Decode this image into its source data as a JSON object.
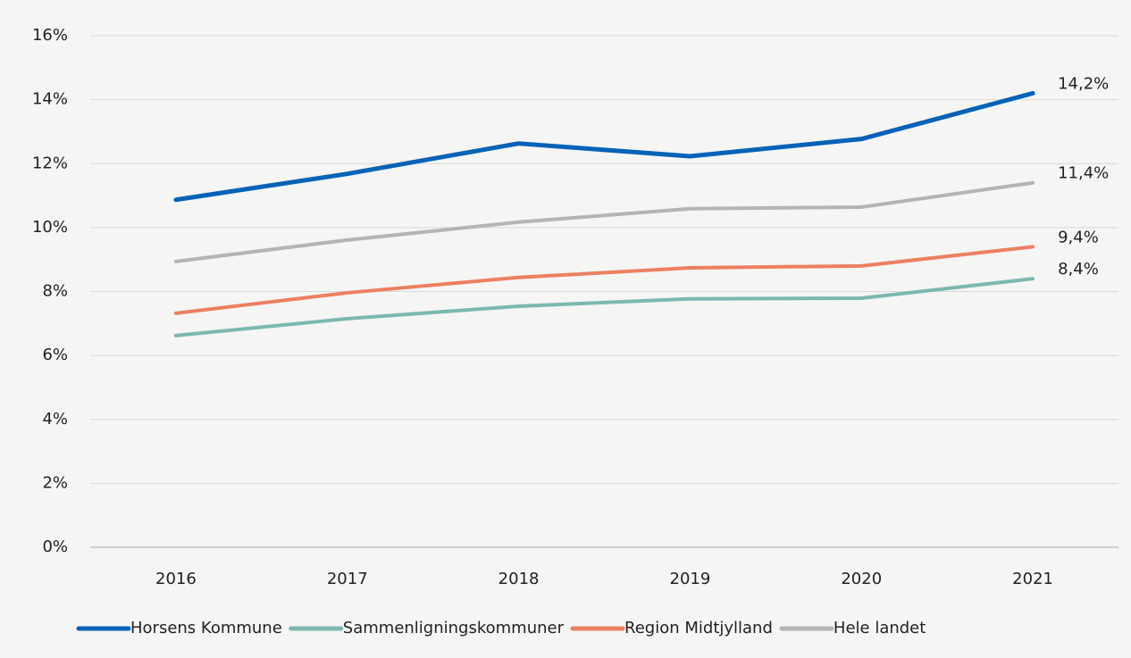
{
  "chart_data": {
    "type": "line",
    "categories": [
      "2016",
      "2017",
      "2018",
      "2019",
      "2020",
      "2021"
    ],
    "series": [
      {
        "name": "Horsens Kommune",
        "color": "#0563b7",
        "values": [
          10.87,
          11.68,
          12.63,
          12.23,
          12.77,
          14.2
        ],
        "value_labels": [
          null,
          null,
          null,
          null,
          null,
          "14,2%"
        ]
      },
      {
        "name": "Sammenligningskommuner",
        "color": "#7bb8b1",
        "values": [
          6.62,
          7.15,
          7.54,
          7.77,
          7.79,
          8.4
        ],
        "value_labels": [
          null,
          null,
          null,
          null,
          null,
          "8,4%"
        ]
      },
      {
        "name": "Region Midtjylland",
        "color": "#ec8061",
        "values": [
          7.32,
          7.96,
          8.44,
          8.74,
          8.8,
          9.4
        ],
        "value_labels": [
          null,
          null,
          null,
          null,
          null,
          "9,4%"
        ]
      },
      {
        "name": "Hele landet",
        "color": "#b4b4b4",
        "values": [
          8.94,
          9.61,
          10.17,
          10.59,
          10.64,
          11.4
        ],
        "value_labels": [
          null,
          null,
          null,
          null,
          null,
          "11,4%"
        ]
      }
    ],
    "ylim": [
      0,
      16
    ],
    "yticks": [
      {
        "value": 0,
        "label": "0%"
      },
      {
        "value": 2,
        "label": "2%"
      },
      {
        "value": 4,
        "label": "4%"
      },
      {
        "value": 6,
        "label": "6%"
      },
      {
        "value": 8,
        "label": "8%"
      },
      {
        "value": 10,
        "label": "10%"
      },
      {
        "value": 12,
        "label": "12%"
      },
      {
        "value": 14,
        "label": "14%"
      },
      {
        "value": 16,
        "label": "16%"
      }
    ],
    "grid": true,
    "legend": "bottom"
  }
}
